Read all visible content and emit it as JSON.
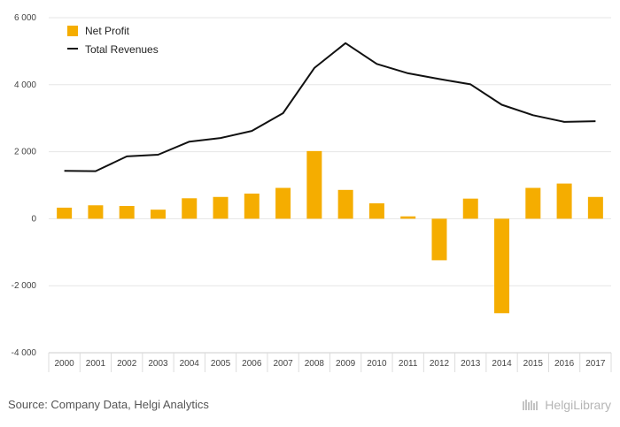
{
  "chart_data": {
    "type": "bar",
    "categories": [
      "2000",
      "2001",
      "2002",
      "2003",
      "2004",
      "2005",
      "2006",
      "2007",
      "2008",
      "2009",
      "2010",
      "2011",
      "2012",
      "2013",
      "2014",
      "2015",
      "2016",
      "2017"
    ],
    "series": [
      {
        "name": "Net Profit",
        "type": "bar",
        "color": "#f5ad00",
        "values": [
          330,
          400,
          380,
          270,
          610,
          650,
          750,
          920,
          2020,
          860,
          460,
          70,
          -1240,
          600,
          -2820,
          920,
          1050,
          650
        ]
      },
      {
        "name": "Total Revenues",
        "type": "line",
        "color": "#111111",
        "values": [
          1430,
          1420,
          1860,
          1910,
          2300,
          2410,
          2620,
          3150,
          4500,
          5240,
          4620,
          4340,
          4170,
          4010,
          3400,
          3090,
          2890,
          2910
        ]
      }
    ],
    "ylim": [
      -4000,
      6000
    ],
    "yticks": [
      6000,
      4000,
      2000,
      0,
      -2000,
      -4000
    ],
    "ytick_labels": [
      "6 000",
      "4 000",
      "2 000",
      "0",
      "-2 000",
      "-4 000"
    ],
    "grid": true,
    "legend_position": "top-left",
    "title": "",
    "xlabel": "",
    "ylabel": ""
  },
  "footer": {
    "source": "Source: Company Data, Helgi Analytics",
    "brand": "HelgiLibrary"
  }
}
